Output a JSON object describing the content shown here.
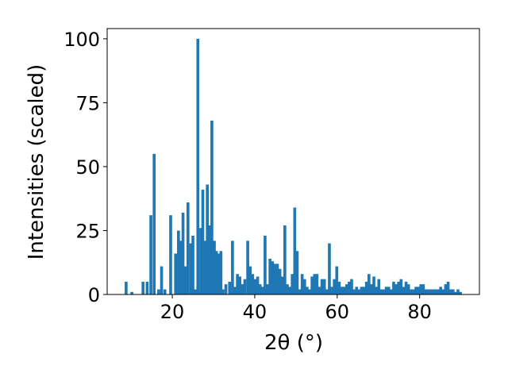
{
  "chart_data": {
    "type": "bar",
    "xlabel": "2θ (°)",
    "ylabel": "Intensities (scaled)",
    "xlim": [
      4.2,
      94.5
    ],
    "ylim": [
      0,
      104
    ],
    "xticks": [
      20,
      40,
      60,
      80
    ],
    "yticks": [
      0,
      25,
      50,
      75,
      100
    ],
    "bar_color": "#1f77b4",
    "bar_width": 0.7,
    "grid": false,
    "x": [
      8.8,
      10.2,
      12.9,
      13.9,
      14.8,
      15.6,
      16.7,
      17.4,
      18.2,
      19.6,
      20.8,
      21.5,
      22.1,
      22.6,
      23.2,
      23.8,
      24.5,
      25.0,
      25.6,
      26.2,
      26.9,
      27.4,
      27.9,
      28.5,
      29.1,
      29.6,
      30.2,
      30.7,
      31.2,
      31.8,
      32.3,
      33.0,
      33.9,
      34.6,
      35.2,
      35.8,
      36.4,
      37.0,
      37.6,
      38.3,
      38.9,
      39.5,
      40.1,
      40.7,
      41.3,
      41.9,
      42.5,
      43.1,
      43.7,
      44.3,
      44.9,
      45.5,
      46.1,
      46.7,
      47.3,
      47.9,
      48.5,
      49.1,
      49.7,
      50.3,
      50.9,
      51.5,
      52.1,
      52.7,
      53.3,
      53.9,
      54.5,
      55.1,
      55.7,
      56.3,
      56.9,
      57.5,
      58.1,
      58.7,
      59.3,
      59.9,
      60.5,
      61.1,
      61.7,
      62.3,
      62.9,
      63.5,
      64.1,
      64.7,
      65.3,
      65.9,
      66.5,
      67.1,
      67.7,
      68.3,
      68.9,
      69.5,
      70.1,
      70.7,
      71.3,
      71.9,
      72.5,
      73.1,
      73.7,
      74.3,
      74.9,
      75.5,
      76.1,
      76.7,
      77.3,
      77.9,
      78.5,
      79.1,
      79.7,
      80.3,
      80.9,
      81.5,
      82.1,
      82.7,
      83.3,
      83.9,
      84.5,
      85.1,
      85.7,
      86.3,
      86.9,
      87.5,
      88.1,
      88.7,
      89.3,
      89.9
    ],
    "values": [
      5,
      1,
      5,
      5,
      31,
      55,
      2,
      11,
      2,
      31,
      16,
      25,
      21,
      32,
      11,
      36,
      20,
      23,
      2,
      100,
      26,
      41,
      21,
      43,
      27,
      68,
      21,
      17,
      16,
      17,
      2,
      4,
      5,
      21,
      3,
      8,
      7,
      4,
      6,
      21,
      11,
      8,
      6,
      7,
      4,
      3,
      23,
      4,
      14,
      13,
      12,
      12,
      10,
      7,
      27,
      4,
      3,
      8,
      34,
      17,
      2,
      8,
      6,
      3,
      2,
      7,
      8,
      8,
      3,
      6,
      6,
      2,
      20,
      3,
      6,
      11,
      5,
      3,
      3,
      4,
      5,
      6,
      2,
      3,
      2,
      3,
      3,
      5,
      8,
      4,
      7,
      3,
      6,
      2,
      2,
      3,
      3,
      2,
      5,
      4,
      5,
      6,
      3,
      5,
      4,
      2,
      2,
      3,
      3,
      4,
      4,
      2,
      2,
      2,
      2,
      2,
      2,
      3,
      2,
      4,
      5,
      2,
      2,
      1,
      2,
      1
    ]
  }
}
